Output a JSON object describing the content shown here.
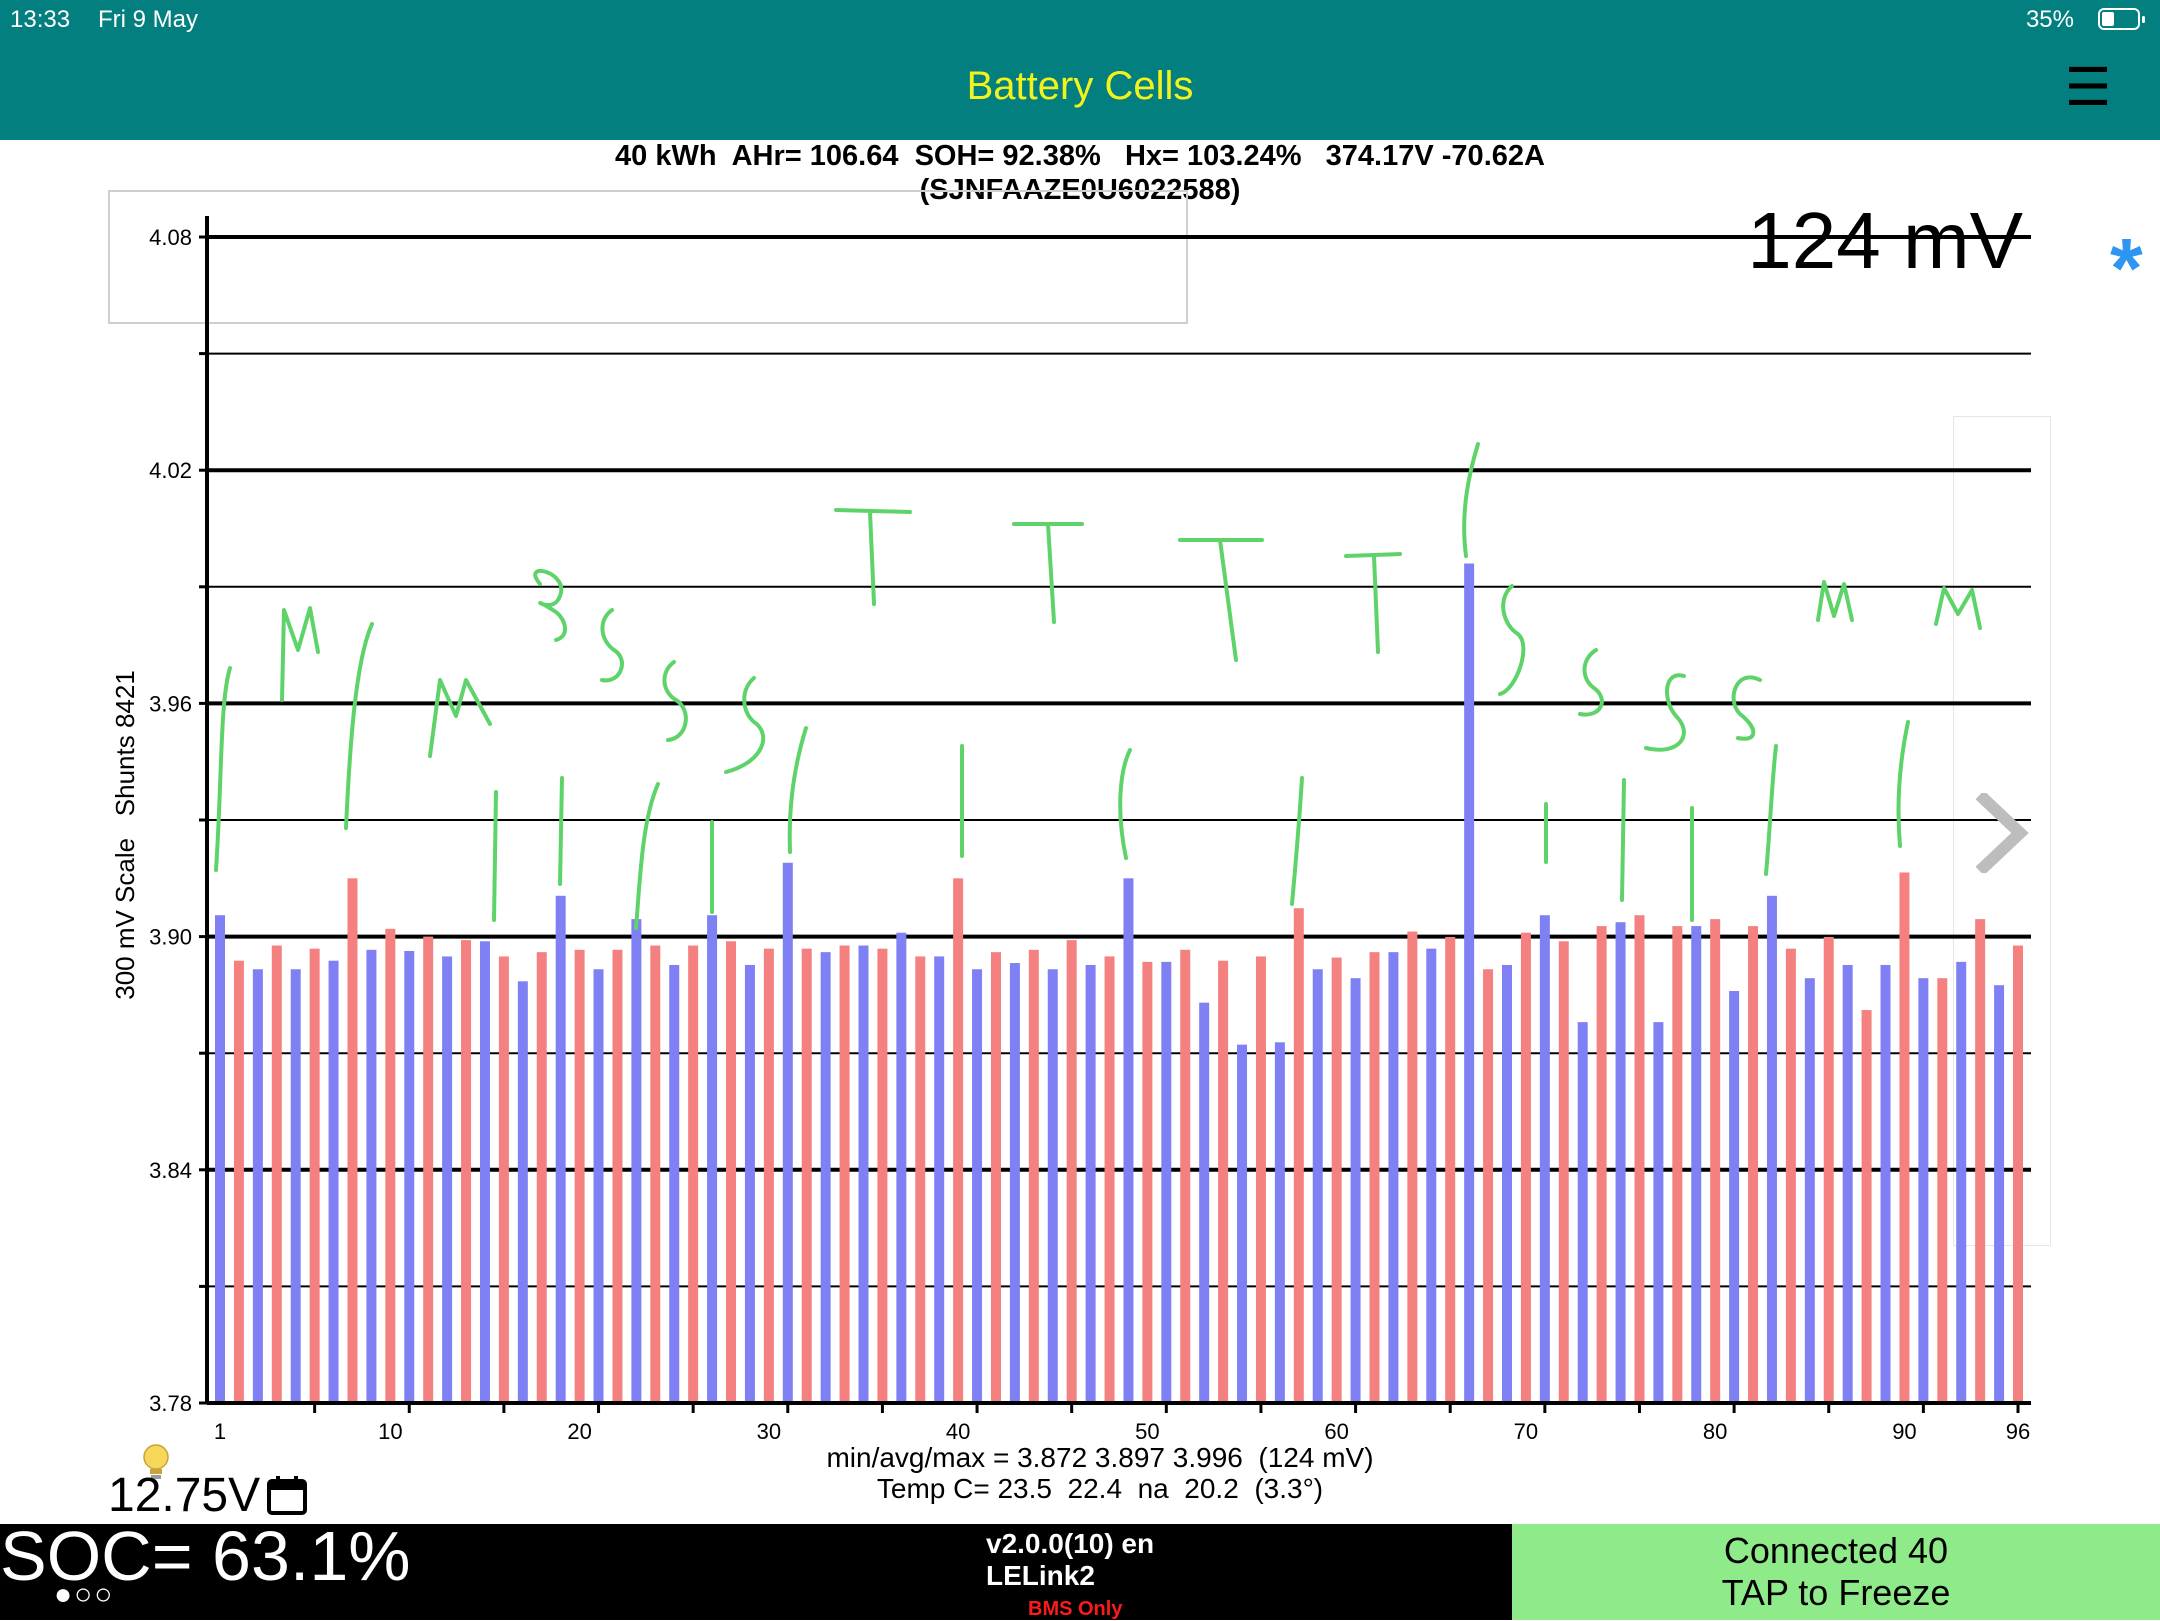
{
  "status_bar": {
    "time": "13:33",
    "date": "Fri 9 May",
    "battery_percent": "35%",
    "battery_level": 0.35
  },
  "header": {
    "title": "Battery Cells",
    "menu_icon": "hamburger-icon",
    "title_color": "#f3f31c",
    "background": "#037f7f"
  },
  "info": {
    "line": "40 kWh  AHr= 106.64  SOH= 92.38%   Hx= 103.24%   374.17V -70.62A",
    "vin": "(SJNFAAZE0U6022588)"
  },
  "mv_delta": "124 mV",
  "star_icon": "asterisk-icon",
  "next_icon": "chevron-right-icon",
  "stats": {
    "minmax": "min/avg/max = 3.872 3.897 3.996  (124 mV)",
    "temp": "Temp C= 23.5  22.4  na  20.2  (3.3°)"
  },
  "aux": {
    "voltage": "12.75V",
    "bulb_icon": "lightbulb-icon",
    "calendar_icon": "calendar-icon"
  },
  "footer": {
    "soc": "SOC= 63.1%",
    "dots": "●○○",
    "version": "v2.0.0(10) en",
    "adapter": "LELink2",
    "mode": "BMS Only",
    "connection_line1": "Connected 40",
    "connection_line2": "TAP to Freeze"
  },
  "chart_data": {
    "type": "bar",
    "ylabel": "300 mV Scale   Shunts 8421",
    "ylim": [
      3.78,
      4.08
    ],
    "y_ticks": [
      "4.08",
      "4.02",
      "3.96",
      "3.90",
      "3.84",
      "3.78"
    ],
    "x_ticks": [
      "1",
      "10",
      "20",
      "30",
      "40",
      "50",
      "60",
      "70",
      "80",
      "90",
      "96"
    ],
    "colors": {
      "odd_cells": "#8080f5",
      "even_cells": "#f58080",
      "annotation": "#5ed36a"
    },
    "series": [
      {
        "categories": [
          1,
          2,
          3,
          4,
          5,
          6,
          7,
          8,
          9,
          10,
          11,
          12,
          13,
          14,
          15,
          16,
          17,
          18,
          19,
          20,
          21,
          22,
          23,
          24,
          25,
          26,
          27,
          28,
          29,
          30,
          31,
          32,
          33,
          34,
          35,
          36,
          37,
          38,
          39,
          40,
          41,
          42,
          43,
          44,
          45,
          46,
          47,
          48,
          49,
          50,
          51,
          52,
          53,
          54,
          55,
          56,
          57,
          58,
          59,
          60,
          61,
          62,
          63,
          64,
          65,
          66,
          67,
          68,
          69,
          70,
          71,
          72,
          73,
          74,
          75,
          76,
          77,
          78,
          79,
          80,
          81,
          82,
          83,
          84,
          85,
          86,
          87,
          88,
          89,
          90,
          91,
          92,
          93,
          94,
          95,
          96
        ],
        "values": [
          3.9055,
          3.8938,
          3.8916,
          3.8977,
          3.8916,
          3.8969,
          3.8938,
          3.915,
          3.8966,
          3.902,
          3.8963,
          3.9,
          3.8949,
          3.8991,
          3.8988,
          3.8949,
          3.8885,
          3.896,
          3.9105,
          3.8966,
          3.8916,
          3.8966,
          3.9045,
          3.8977,
          3.8927,
          3.8977,
          3.9055,
          3.8988,
          3.8927,
          3.8969,
          3.919,
          3.8969,
          3.896,
          3.8977,
          3.8977,
          3.8969,
          3.901,
          3.8949,
          3.8949,
          3.915,
          3.8916,
          3.896,
          3.8932,
          3.8966,
          3.8916,
          3.8991,
          3.8927,
          3.8949,
          3.915,
          3.8935,
          3.8935,
          3.8966,
          3.883,
          3.8938,
          3.8722,
          3.8949,
          3.8728,
          3.9073,
          3.8916,
          3.8946,
          3.8893,
          3.896,
          3.896,
          3.9013,
          3.8969,
          3.8999,
          3.996,
          3.8916,
          3.8927,
          3.901,
          3.9055,
          3.8988,
          3.878,
          3.9027,
          3.9037,
          3.9055,
          3.878,
          3.9027,
          3.9027,
          3.9045,
          3.886,
          3.9027,
          3.9105,
          3.8969,
          3.8893,
          3.8999,
          3.8927,
          3.8811,
          3.8927,
          3.9165,
          3.8893,
          3.8893,
          3.8935,
          3.9045,
          3.8875,
          3.8977
        ]
      }
    ]
  }
}
